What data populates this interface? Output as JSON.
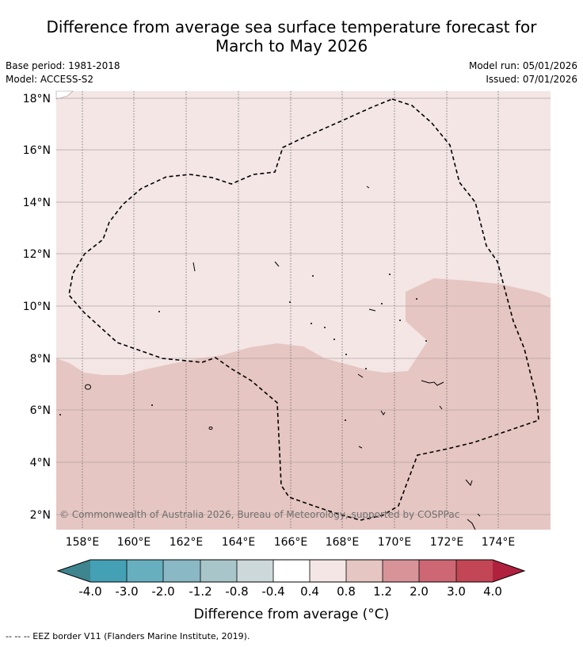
{
  "title": {
    "line1": "Difference from average sea surface temperature forecast for",
    "line2": "March to May 2026"
  },
  "meta": {
    "base_period": "Base period: 1981-2018",
    "model": "Model: ACCESS-S2",
    "model_run": "Model run: 05/01/2026",
    "issued": "Issued: 07/01/2026"
  },
  "map": {
    "lat_labels": [
      "18°N",
      "16°N",
      "14°N",
      "12°N",
      "10°N",
      "8°N",
      "6°N",
      "4°N",
      "2°N"
    ],
    "lon_labels": [
      "158°E",
      "160°E",
      "162°E",
      "164°E",
      "166°E",
      "168°E",
      "170°E",
      "172°E",
      "174°E"
    ],
    "credit": "© Commonwealth of Australia 2026, Bureau of Meteorology, supported by COSPPac",
    "colors": {
      "band_0_4_to_0_8": "#f3e6e5",
      "band_0_8_to_1_2": "#e6c6c2"
    }
  },
  "colorbar": {
    "ticks": [
      "-4.0",
      "-3.0",
      "-2.0",
      "-1.2",
      "-0.8",
      "-0.4",
      "0.4",
      "0.8",
      "1.2",
      "2.0",
      "3.0",
      "4.0"
    ],
    "colors": [
      "#3e8590",
      "#44a0b4",
      "#67afbe",
      "#8ab8c4",
      "#a8c6ca",
      "#cdd8db",
      "#ffffff",
      "#f3e6e5",
      "#e6c6c2",
      "#d89399",
      "#cd6773",
      "#c24655",
      "#b0213e"
    ],
    "label": "Difference from average (°C)"
  },
  "footer": {
    "text": "--  --  -- EEZ border V11 (Flanders Marine Institute, 2019)."
  }
}
